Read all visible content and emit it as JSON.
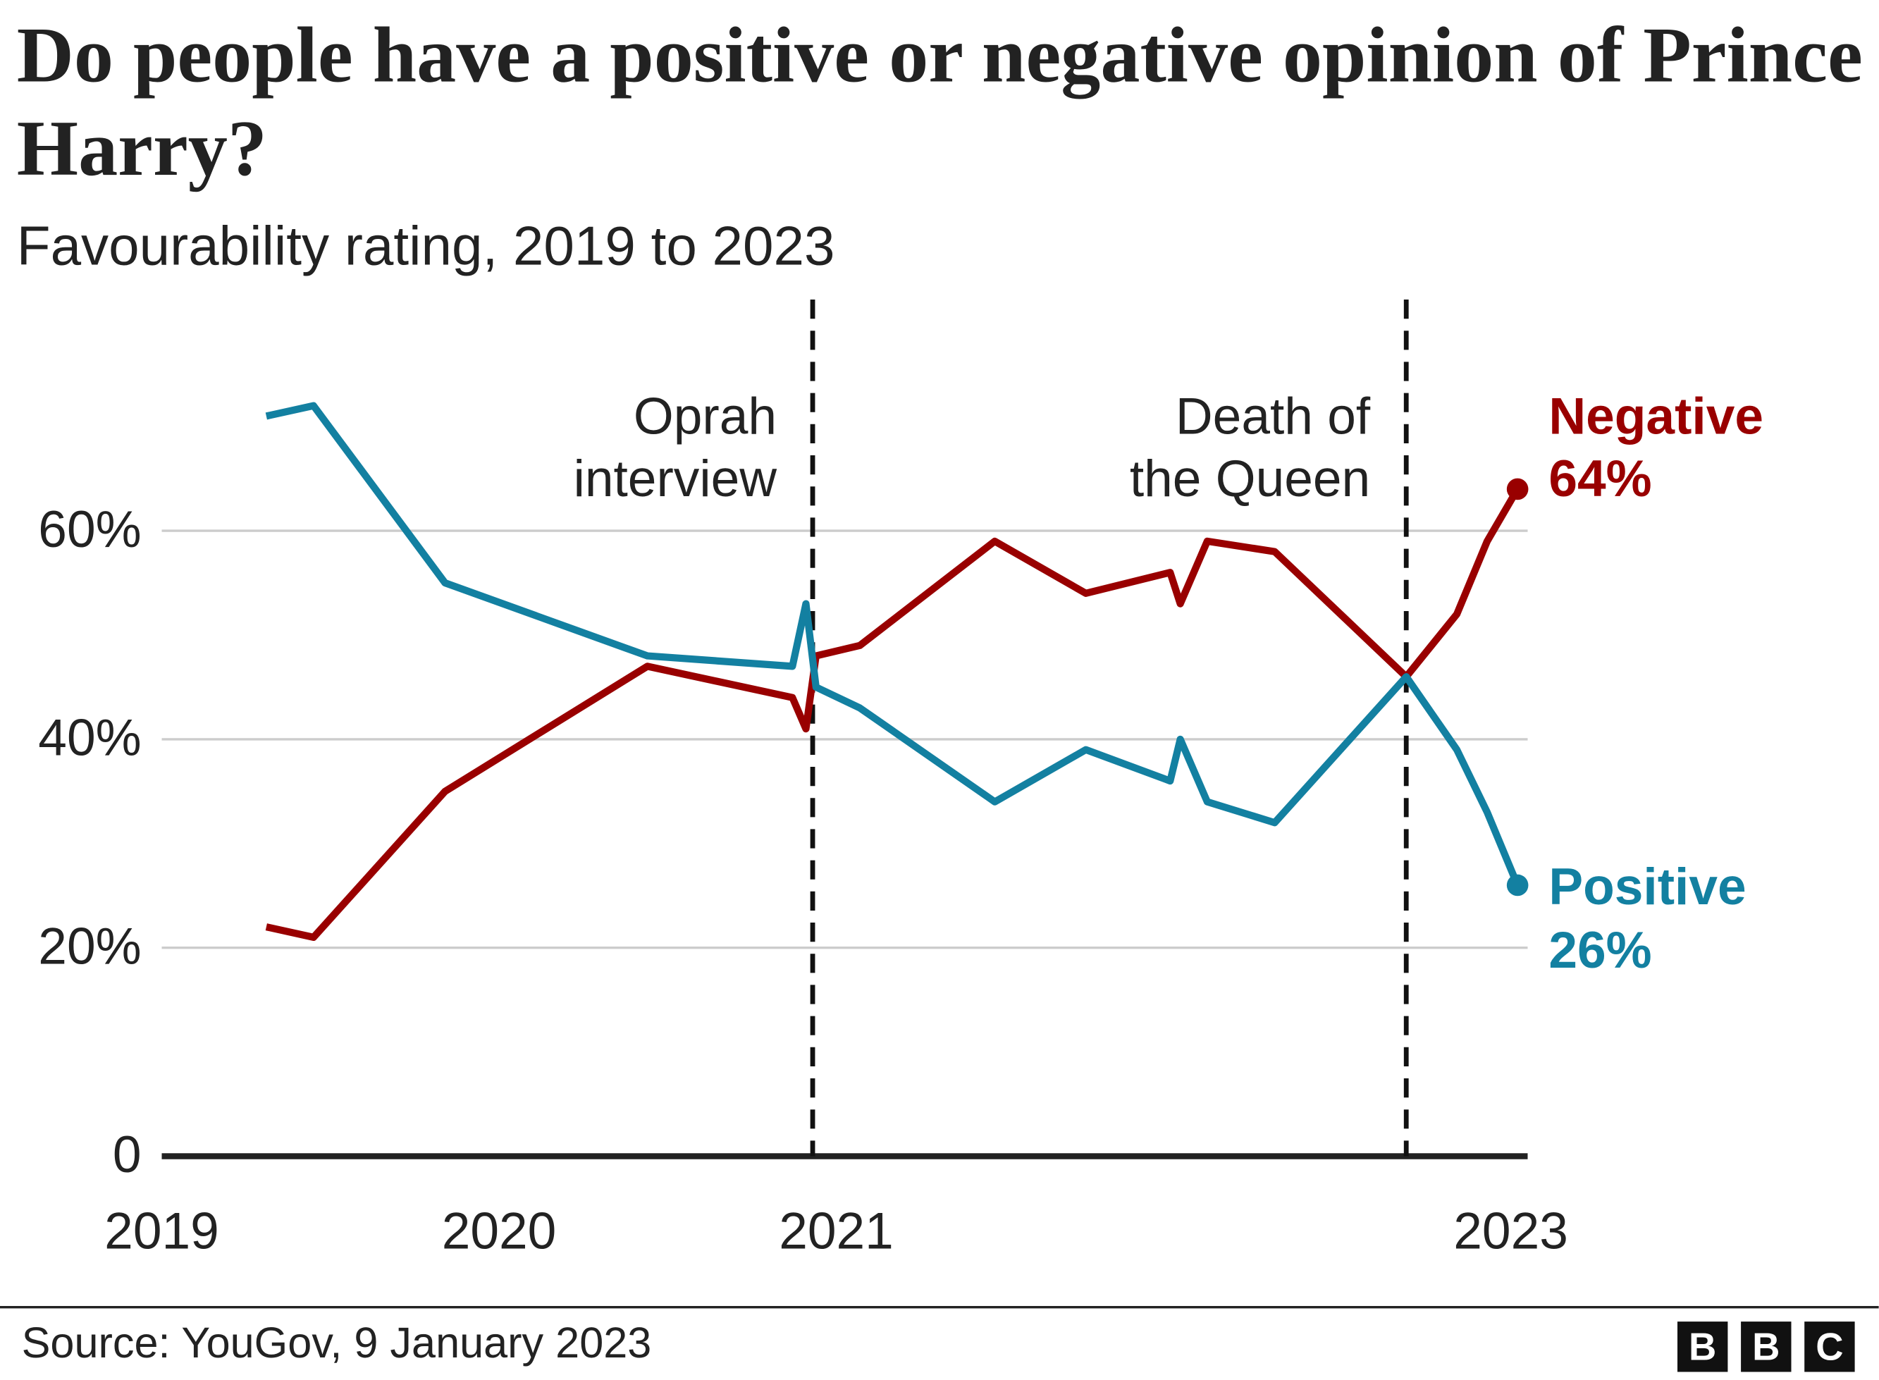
{
  "chart_data": {
    "type": "line",
    "title": "Do people have a positive or negative opinion of Prince Harry?",
    "subtitle": "Favourability rating, 2019 to 2023",
    "x": [
      2019.31,
      2019.45,
      2019.84,
      2020.44,
      2020.87,
      2020.91,
      2020.94,
      2021.07,
      2021.47,
      2021.74,
      2021.99,
      2022.02,
      2022.1,
      2022.3,
      2022.69,
      2022.84,
      2022.93,
      2023.02
    ],
    "series": [
      {
        "name": "Negative",
        "color": "#990000",
        "values": [
          22,
          21,
          35,
          47,
          44,
          41,
          48,
          49,
          59,
          54,
          56,
          53,
          59,
          58,
          46,
          52,
          59,
          64
        ],
        "value_labels": [
          null,
          null,
          null,
          null,
          null,
          null,
          null,
          null,
          null,
          null,
          null,
          null,
          null,
          null,
          null,
          null,
          null,
          "64%"
        ]
      },
      {
        "name": "Positive",
        "color": "#1380a1",
        "values": [
          71,
          72,
          55,
          48,
          47,
          53,
          45,
          43,
          34,
          39,
          36,
          40,
          34,
          32,
          46,
          39,
          33,
          26
        ],
        "value_labels": [
          null,
          null,
          null,
          null,
          null,
          null,
          null,
          null,
          null,
          null,
          null,
          null,
          null,
          null,
          null,
          null,
          null,
          "26%"
        ]
      }
    ],
    "xlim": [
      2019,
      2023.05
    ],
    "xticks": [
      2019,
      2020,
      2021,
      2023
    ],
    "ylim": [
      0,
      80
    ],
    "yticks": [
      0,
      {
        "value": 20,
        "label": "20%"
      },
      {
        "value": 40,
        "label": "40%"
      },
      {
        "value": 60,
        "label": "60%"
      }
    ],
    "grid": true,
    "annotations": [
      {
        "x": 2020.93,
        "lines": [
          "Oprah",
          "interview"
        ]
      },
      {
        "x": 2022.69,
        "lines": [
          "Death of",
          "the Queen"
        ]
      }
    ],
    "source": "Source: YouGov, 9 January 2023",
    "logo": [
      "B",
      "B",
      "C"
    ]
  }
}
